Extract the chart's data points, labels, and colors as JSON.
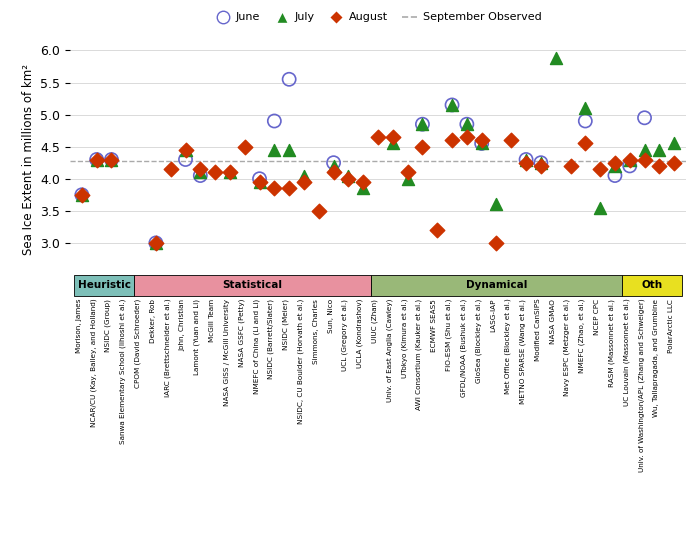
{
  "ylabel": "Sea Ice Extent in millions of km²",
  "observed_line": 4.28,
  "ylim": [
    2.5,
    6.1
  ],
  "yticks": [
    3.0,
    3.5,
    4.0,
    4.5,
    5.0,
    5.5,
    6.0
  ],
  "groups": [
    {
      "name": "Heuristic",
      "color": "#7dbfb8",
      "start": 0,
      "end": 4
    },
    {
      "name": "Statistical",
      "color": "#e8919f",
      "start": 4,
      "end": 20
    },
    {
      "name": "Dynamical",
      "color": "#99b878",
      "start": 20,
      "end": 37
    },
    {
      "name": "Oth",
      "color": "#e8e020",
      "start": 37,
      "end": 41
    }
  ],
  "contributors": [
    "Morison, James",
    "NCAR/CU (Kay, Bailey, and Holland)",
    "NSIDC (Group)",
    "Sanwa Elementary School (Iihoshi et al.)",
    "CPOM (David Schroeder)",
    "Dekker, Rob",
    "IARC (Brettschneider et al.)",
    "John, Christian",
    "Lamont (Yuan and Li)",
    "McGill Team",
    "NASA GISS / McGill University",
    "NASA GSFC (Petty)",
    "NMEFC of China (Li and Li)",
    "NSIDC (Barrett/Slater)",
    "NSIDC (Meier)",
    "NSIDC, CU Boulder (Horvath et al.)",
    "Simmons, Charles",
    "Sun, Nico",
    "UCL (Gregory et al.)",
    "UCLA (Kondrashov)",
    "UIUC (Zhan)",
    "Univ. of East Anglia (Cawley)",
    "UTokyo (Kimura et al.)",
    "AWI Consortium (Kauker et al.)",
    "ECMWF SEAS5",
    "FIO-ESM (Shu et al.)",
    "GFDL/NOAA (Bushuk et al.)",
    "GloSea (Blockley et al.)",
    "LASG-IAP",
    "Met Office (Blockley et al.)",
    "METNO SPARSE (Wang et al.)",
    "Modified CanSIPS",
    "NASA GMAO",
    "Navy ESPC (Metzger et al.)",
    "NMEFC (Zhao, et al.)",
    "NCEP CPC",
    "RASM (Massonnet et al.)",
    "UC Louvain (Massonnet et al.)",
    "Univ. of Washington/APL (Zhang and Schweiger)",
    "Wu, Tallapragada, and Grumbine",
    "PolarArctic LLC"
  ],
  "june": [
    3.75,
    4.3,
    4.3,
    null,
    null,
    3.0,
    null,
    4.3,
    4.05,
    null,
    null,
    null,
    4.0,
    4.9,
    5.55,
    null,
    null,
    4.25,
    null,
    null,
    null,
    null,
    null,
    4.85,
    null,
    5.15,
    4.85,
    4.55,
    null,
    null,
    4.3,
    4.25,
    null,
    null,
    4.9,
    null,
    4.05,
    4.2,
    4.95,
    null,
    null
  ],
  "july": [
    3.75,
    4.3,
    4.3,
    null,
    null,
    3.0,
    null,
    4.45,
    4.1,
    null,
    4.1,
    null,
    3.95,
    4.45,
    4.45,
    4.05,
    null,
    4.2,
    4.05,
    3.85,
    null,
    4.55,
    4.0,
    4.85,
    null,
    5.15,
    4.85,
    4.55,
    3.6,
    null,
    4.3,
    4.25,
    5.88,
    null,
    5.1,
    3.55,
    4.2,
    4.3,
    4.45,
    4.45,
    4.55
  ],
  "august": [
    3.75,
    4.3,
    4.3,
    null,
    null,
    3.0,
    4.15,
    4.45,
    4.15,
    4.1,
    4.1,
    4.5,
    3.95,
    3.85,
    3.85,
    3.95,
    3.5,
    4.1,
    4.0,
    3.95,
    4.65,
    4.65,
    4.1,
    4.5,
    3.2,
    4.6,
    4.65,
    4.6,
    3.0,
    4.6,
    4.25,
    4.2,
    null,
    4.2,
    4.55,
    4.15,
    4.25,
    4.3,
    4.3,
    4.2,
    4.25
  ],
  "june_color": "#6666cc",
  "july_color": "#228b22",
  "august_color": "#cc3300",
  "observed_color": "#aaaaaa"
}
